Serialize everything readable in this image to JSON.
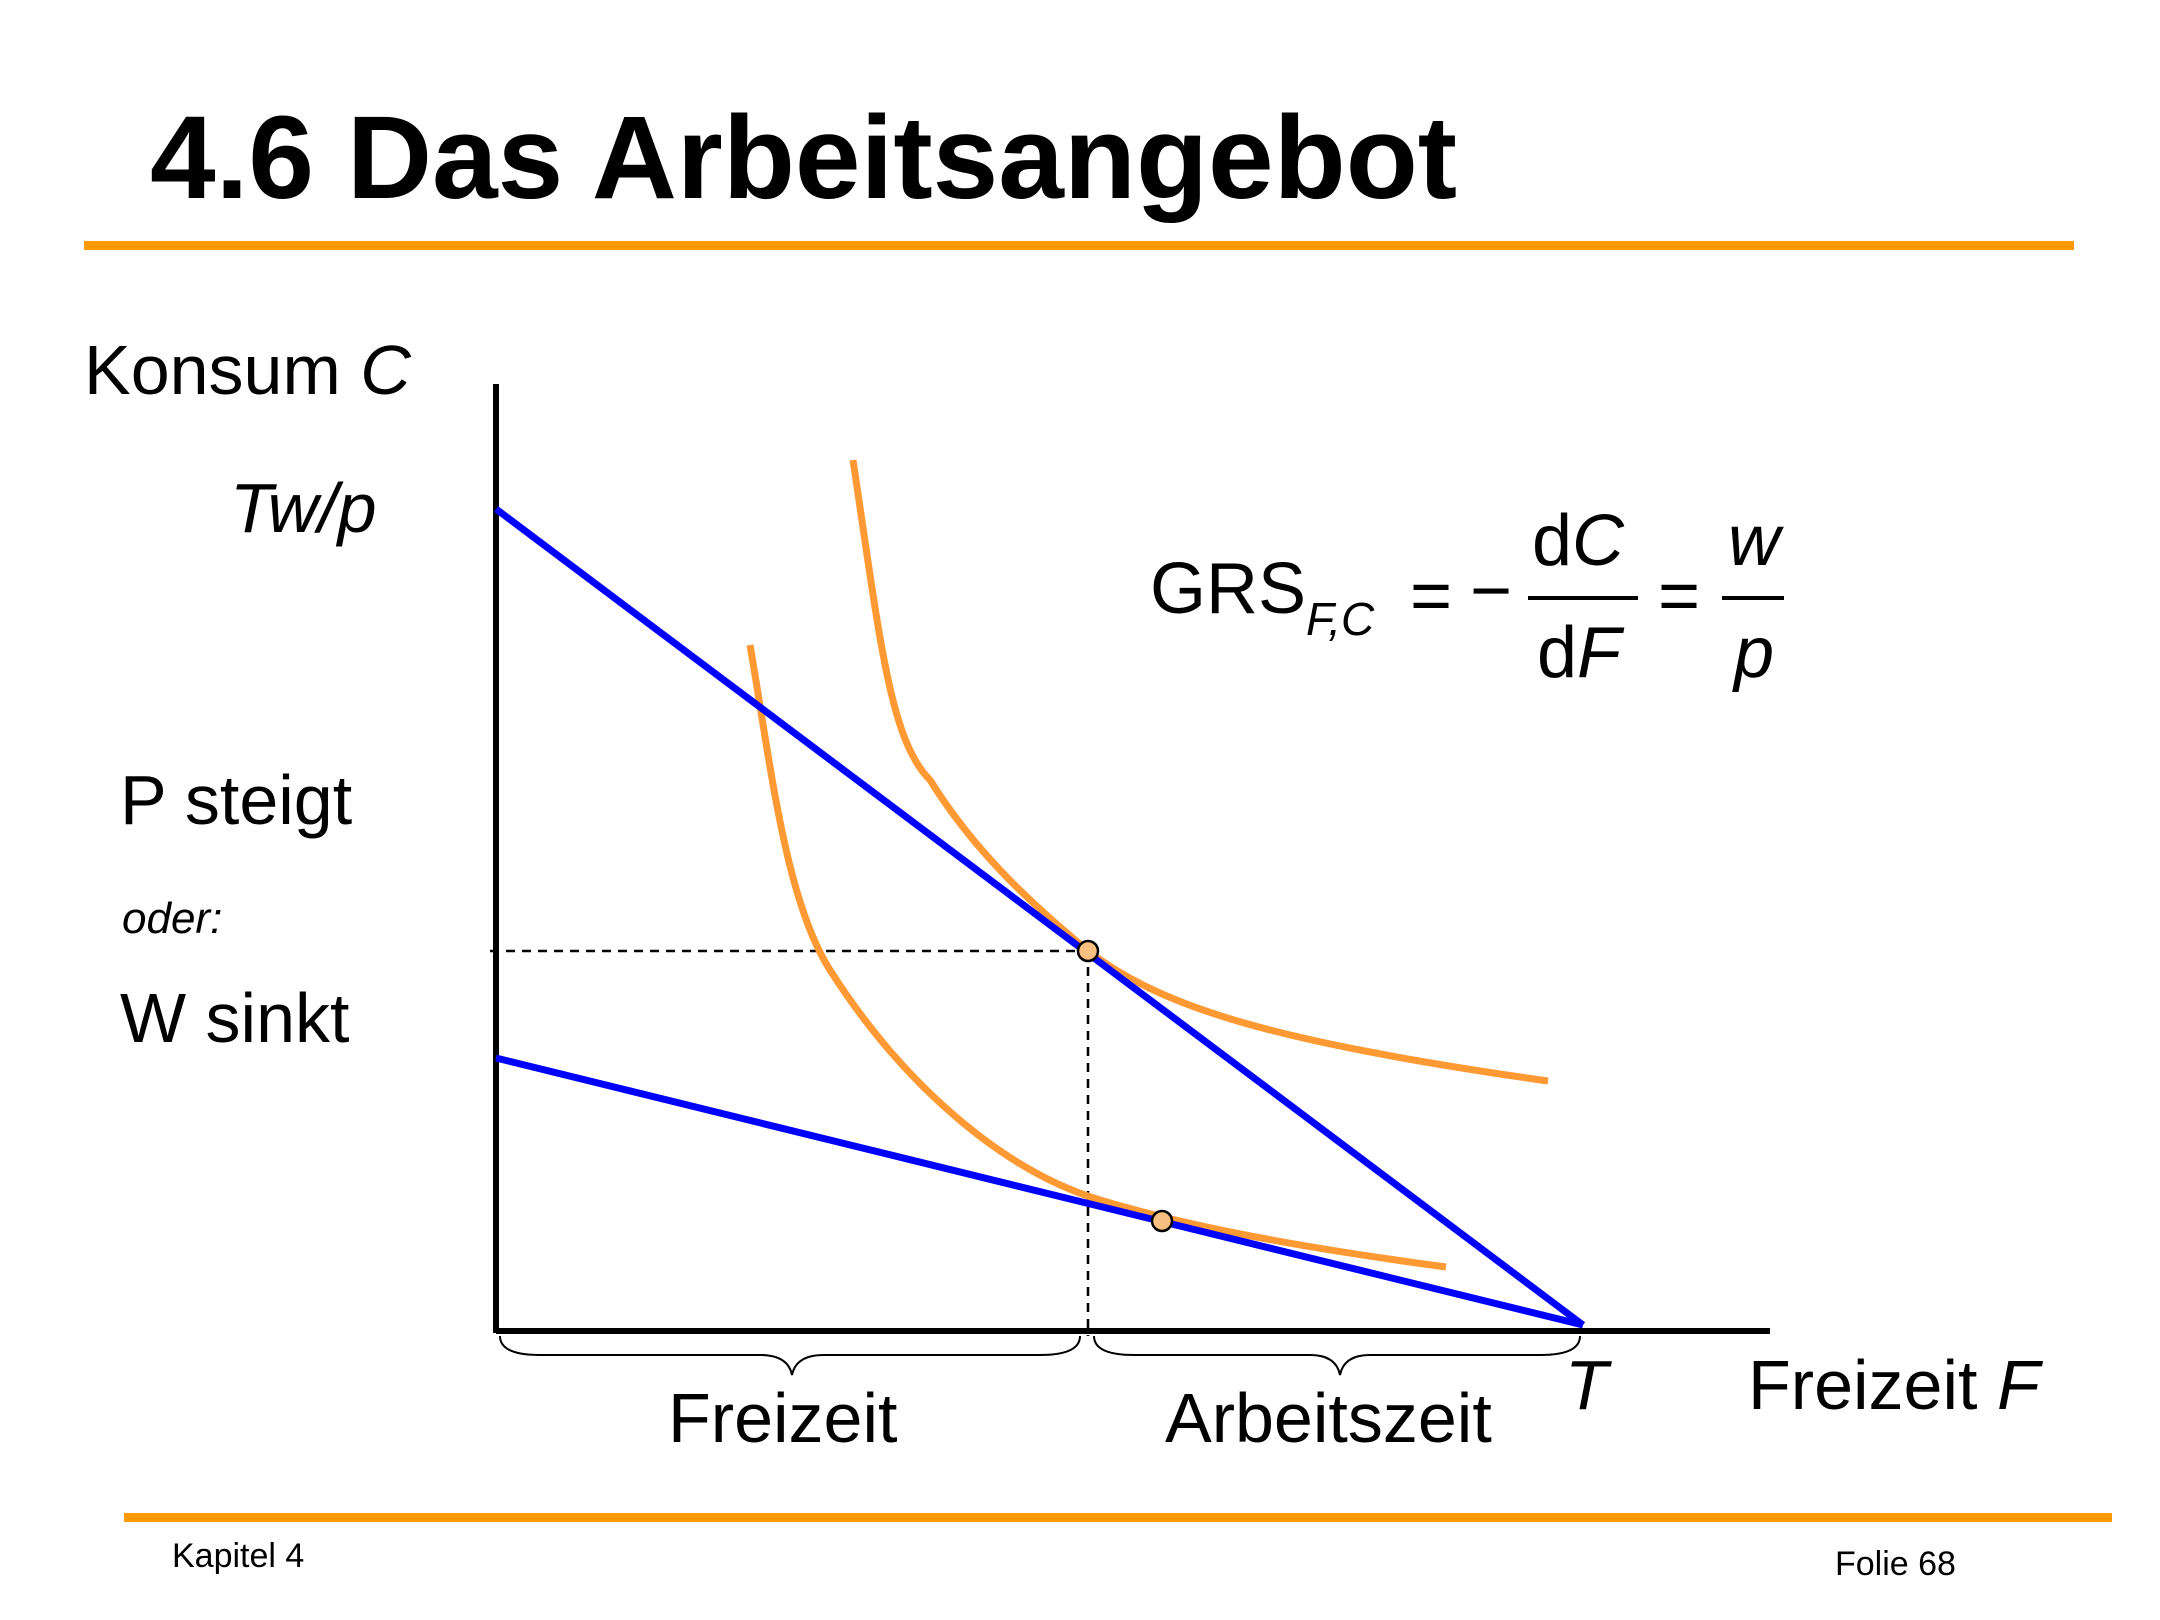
{
  "slide": {
    "title": "4.6 Das Arbeitsangebot",
    "accent_color": "#FF9900",
    "footer_left": "Kapitel 4",
    "footer_right": "Folie 68"
  },
  "diagram": {
    "y_axis_label": "Konsum",
    "y_axis_var": "C",
    "y_intercept_label": "Tw/p",
    "x_axis_label": "Freizeit",
    "x_axis_var": "F",
    "x_endpoint_label": "T",
    "brace_left_label": "Freizeit",
    "brace_right_label": "Arbeitszeit",
    "side_note_1": "P steigt",
    "side_note_2": "oder:",
    "side_note_3": "W sinkt",
    "budget_line_color": "#0000FF",
    "indifference_curve_color": "#FF9933",
    "point_fill_color": "#F9BF80"
  },
  "formula": {
    "lhs": "GRS",
    "lhs_sub": "F,C",
    "eq1": "=",
    "minus": "−",
    "num1_d": "d",
    "num1_var": "C",
    "den1_d": "d",
    "den1_var": "F",
    "eq2": "=",
    "num2": "w",
    "den2": "p"
  }
}
